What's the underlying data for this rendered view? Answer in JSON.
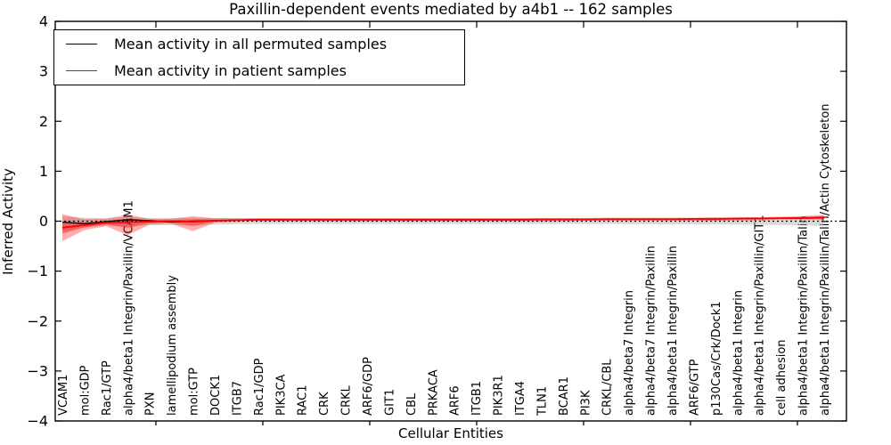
{
  "title": "Paxillin-dependent events mediated by a4b1 -- 162 samples",
  "axes": {
    "ylabel": "Inferred Activity",
    "xlabel": "Cellular Entities",
    "yticks": [
      "4",
      "3",
      "2",
      "1",
      "0",
      "−1",
      "−2",
      "−3",
      "−4"
    ]
  },
  "legend": {
    "items": [
      {
        "label": "Mean activity in all permuted samples",
        "color": "#000000"
      },
      {
        "label": "Mean activity in patient samples",
        "color": "#ff0000"
      }
    ]
  },
  "chart_data": {
    "type": "line",
    "title": "Paxillin-dependent events mediated by a4b1 -- 162 samples",
    "xlabel": "Cellular Entities",
    "ylabel": "Inferred Activity",
    "ylim": [
      -4,
      4
    ],
    "grid": false,
    "legend_position": "upper left",
    "zero_line": 0,
    "colors": {
      "permuted": "#000000",
      "patient": "#ff0000",
      "patient_band": "#ff0000",
      "permuted_band": "#aaaaaa"
    },
    "categories": [
      "VCAM1",
      "mol:GDP",
      "Rac1/GTP",
      "alpha4/beta1 Integrin/Paxillin/VCAM1",
      "PXN",
      "lamellipodium assembly",
      "mol:GTP",
      "DOCK1",
      "ITGB7",
      "Rac1/GDP",
      "PIK3CA",
      "RAC1",
      "CRK",
      "CRKL",
      "ARF6/GDP",
      "GIT1",
      "CBL",
      "PRKACA",
      "ARF6",
      "ITGB1",
      "PIK3R1",
      "ITGA4",
      "TLN1",
      "BCAR1",
      "PI3K",
      "CRKL/CBL",
      "alpha4/beta7 Integrin",
      "alpha4/beta7 Integrin/Paxillin",
      "alpha4/beta1 Integrin/Paxillin",
      "ARF6/GTP",
      "p130Cas/Crk/Dock1",
      "alpha4/beta1 Integrin",
      "alpha4/beta1 Integrin/Paxillin/GIT1",
      "cell adhesion",
      "alpha4/beta1 Integrin/Paxillin/Talin",
      "alpha4/beta1 Integrin/Paxillin/Talin/Actin Cytoskeleton"
    ],
    "series": [
      {
        "name": "Mean activity in all permuted samples",
        "color": "#000000",
        "values": [
          -0.02,
          -0.05,
          -0.01,
          0.03,
          0.01,
          -0.02,
          0.0,
          0.01,
          0.02,
          0.03,
          0.03,
          0.03,
          0.03,
          0.03,
          0.03,
          0.03,
          0.03,
          0.03,
          0.03,
          0.03,
          0.03,
          0.03,
          0.035,
          0.035,
          0.035,
          0.04,
          0.04,
          0.04,
          0.04,
          0.045,
          0.045,
          0.05,
          0.055,
          0.06,
          0.06,
          0.065
        ]
      },
      {
        "name": "Mean activity in patient samples",
        "color": "#ff0000",
        "values": [
          -0.13,
          -0.08,
          -0.03,
          -0.02,
          -0.01,
          0.0,
          -0.01,
          0.01,
          0.02,
          0.03,
          0.03,
          0.03,
          0.03,
          0.03,
          0.03,
          0.03,
          0.03,
          0.03,
          0.03,
          0.03,
          0.03,
          0.03,
          0.035,
          0.035,
          0.035,
          0.04,
          0.04,
          0.04,
          0.04,
          0.045,
          0.045,
          0.05,
          0.055,
          0.06,
          0.065,
          0.075
        ]
      }
    ],
    "bands": [
      {
        "name": "permuted-range",
        "color": "#aaaaaa",
        "opacity": 0.45,
        "inner_factor": 0,
        "upper": [
          0.1,
          0.07,
          0.06,
          0.08,
          0.06,
          0.06,
          0.07,
          0.06,
          0.055,
          0.055,
          0.055,
          0.055,
          0.055,
          0.055,
          0.055,
          0.055,
          0.055,
          0.055,
          0.055,
          0.055,
          0.055,
          0.055,
          0.055,
          0.055,
          0.055,
          0.06,
          0.06,
          0.06,
          0.06,
          0.06,
          0.06,
          0.06,
          0.065,
          0.065,
          0.07,
          0.07
        ],
        "lower": [
          -0.22,
          -0.13,
          -0.09,
          -0.11,
          -0.08,
          -0.08,
          -0.09,
          -0.07,
          -0.06,
          -0.055,
          -0.055,
          -0.055,
          -0.055,
          -0.055,
          -0.055,
          -0.055,
          -0.055,
          -0.055,
          -0.055,
          -0.055,
          -0.055,
          -0.055,
          -0.055,
          -0.055,
          -0.055,
          -0.055,
          -0.06,
          -0.06,
          -0.065,
          -0.065,
          -0.065,
          -0.07,
          -0.075,
          -0.075,
          -0.085,
          -0.095
        ]
      },
      {
        "name": "patient-range",
        "color": "#ff0000",
        "opacity": 0.32,
        "inner_factor": 0.45,
        "upper": [
          0.14,
          0.04,
          0.05,
          0.13,
          0.05,
          0.05,
          0.1,
          0.06,
          0.06,
          0.06,
          0.06,
          0.06,
          0.06,
          0.06,
          0.06,
          0.06,
          0.06,
          0.06,
          0.06,
          0.06,
          0.06,
          0.06,
          0.06,
          0.06,
          0.06,
          0.07,
          0.07,
          0.07,
          0.07,
          0.07,
          0.08,
          0.08,
          0.08,
          0.09,
          0.1,
          0.13
        ],
        "lower": [
          -0.4,
          -0.18,
          -0.1,
          -0.28,
          -0.07,
          -0.05,
          -0.2,
          -0.03,
          -0.01,
          0.0,
          0.0,
          0.0,
          0.0,
          0.0,
          0.0,
          0.0,
          0.0,
          0.0,
          0.0,
          0.0,
          0.0,
          0.0,
          0.0,
          0.0,
          0.01,
          0.01,
          0.01,
          0.01,
          0.01,
          0.01,
          0.01,
          0.02,
          0.02,
          0.03,
          0.03,
          0.03
        ]
      }
    ]
  }
}
